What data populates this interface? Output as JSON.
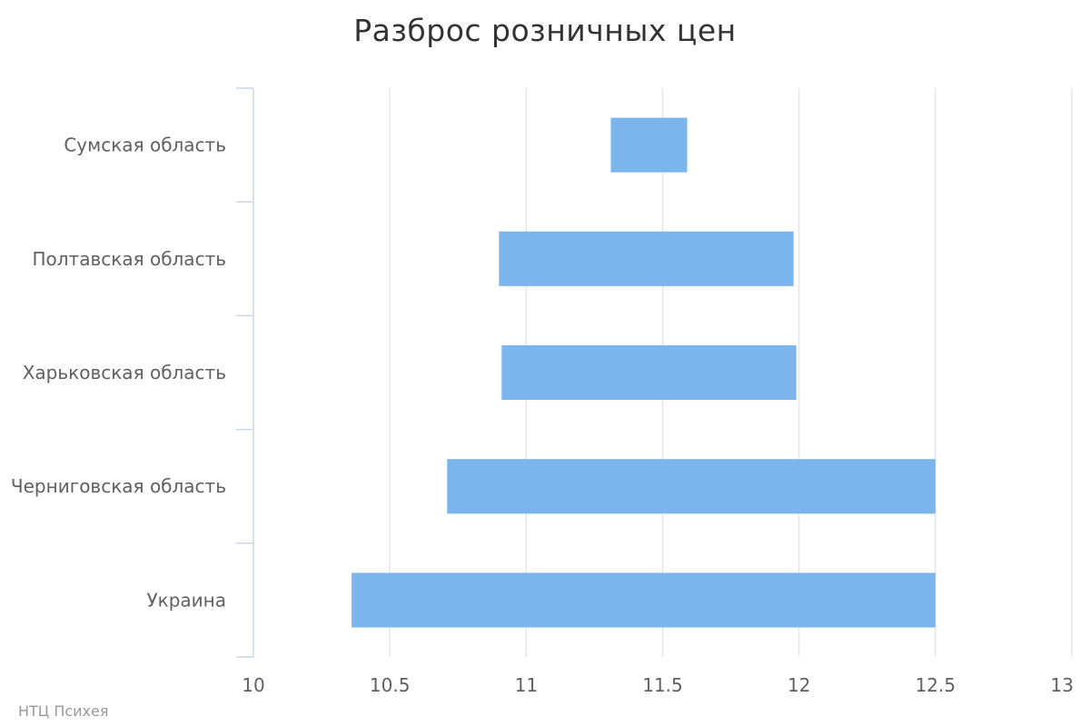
{
  "chart_data": {
    "type": "bar",
    "orientation": "horizontal",
    "subtype": "columnrange",
    "title": "Разброс розничных цен",
    "categories": [
      "Сумская область",
      "Полтавская область",
      "Харьковская область",
      "Черниговская область",
      "Украина"
    ],
    "series": [
      {
        "low": [
          11.31,
          10.9,
          10.91,
          10.71,
          10.36
        ],
        "high": [
          11.59,
          11.98,
          11.99,
          12.5,
          12.5
        ]
      }
    ],
    "x_ticks": [
      "10",
      "10.5",
      "11",
      "11.5",
      "12",
      "12.5",
      "13"
    ],
    "xlim": [
      10,
      13
    ],
    "grid": true,
    "bar_color": "#7cb5ec",
    "grid_color": "#e6e6e6",
    "axis_color": "#ccd6eb"
  },
  "credits": "НТЦ Психея"
}
